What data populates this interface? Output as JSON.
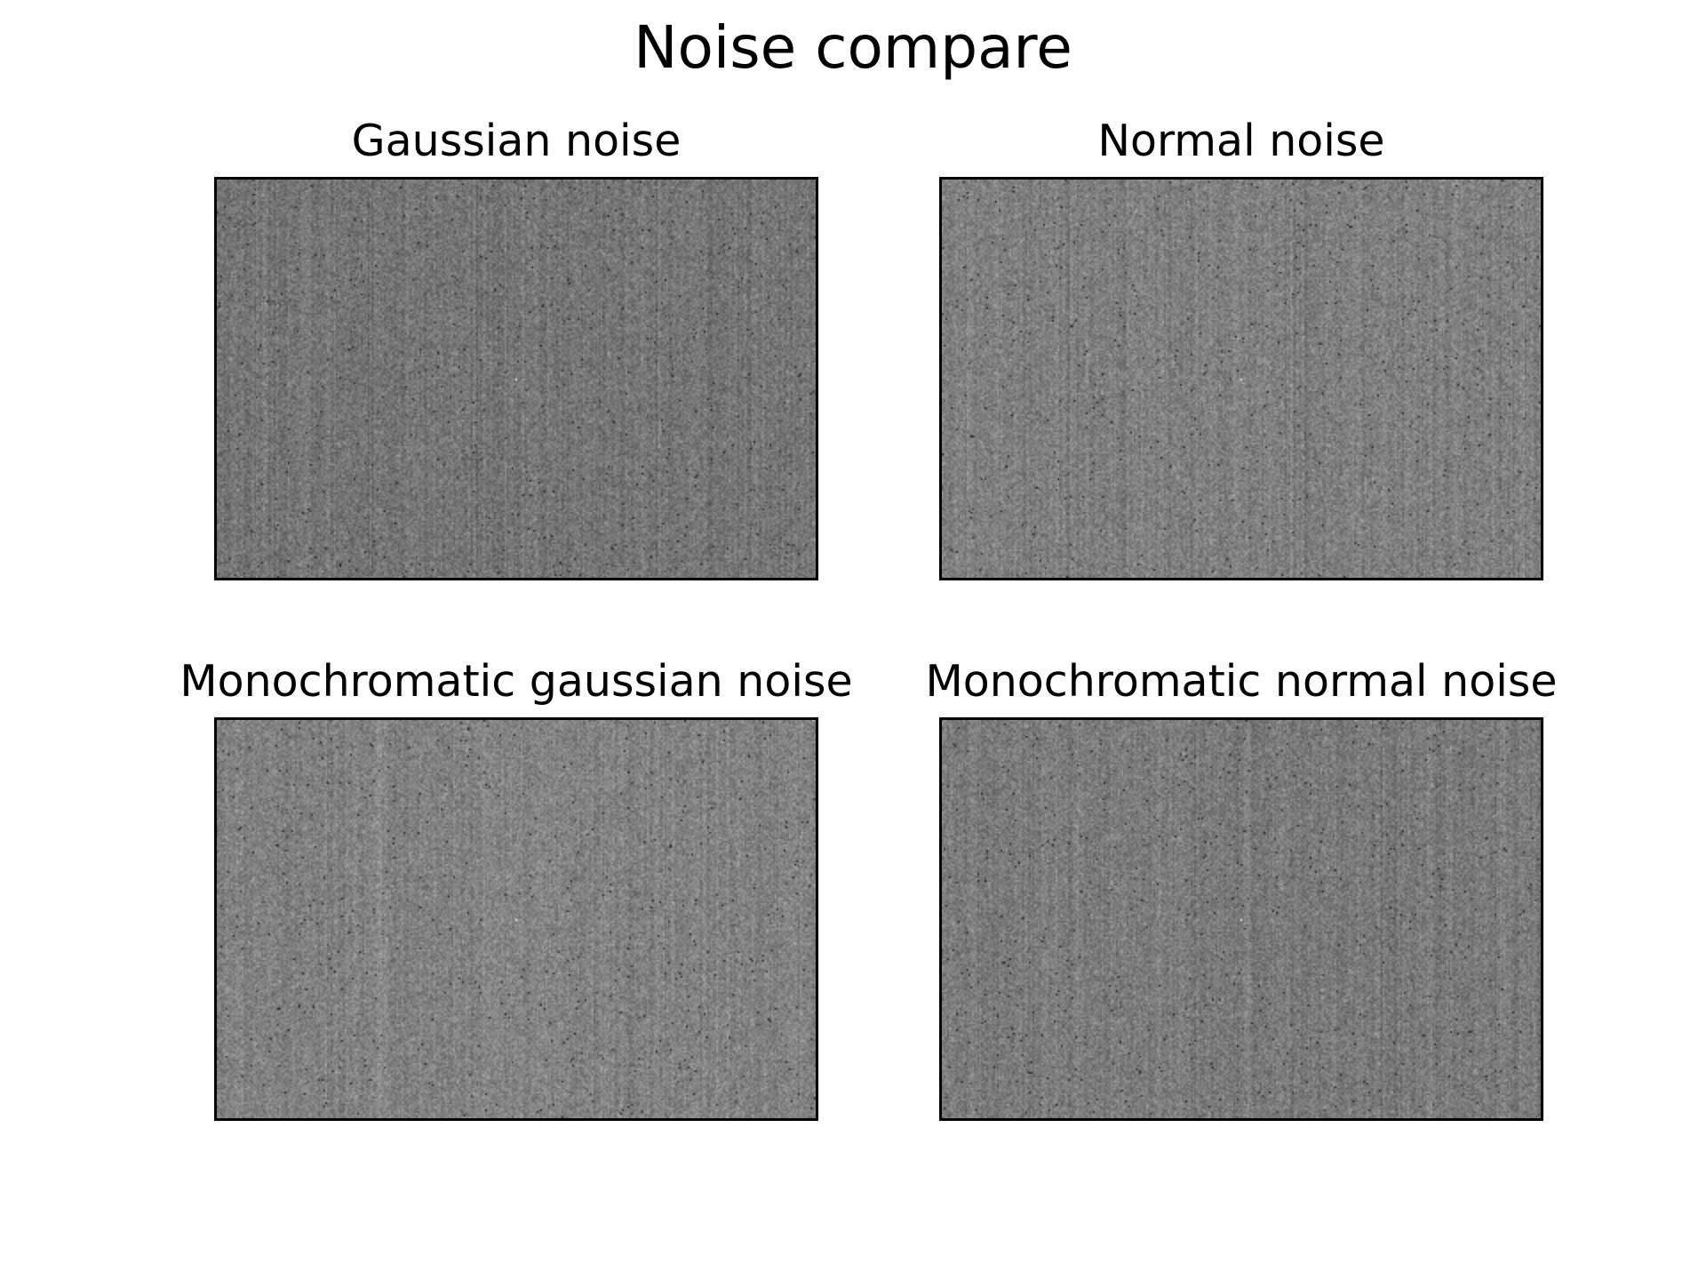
{
  "figure": {
    "title": "Noise compare"
  },
  "chart_data": [
    {
      "type": "heatmap",
      "title": "Gaussian noise",
      "colormap": "gray",
      "mean_level": 0.46,
      "axes_visible": false
    },
    {
      "type": "heatmap",
      "title": "Normal noise",
      "colormap": "gray",
      "mean_level": 0.5,
      "axes_visible": false
    },
    {
      "type": "heatmap",
      "title": "Monochromatic gaussian noise",
      "colormap": "gray",
      "mean_level": 0.51,
      "axes_visible": false
    },
    {
      "type": "heatmap",
      "title": "Monochromatic normal noise",
      "colormap": "gray",
      "mean_level": 0.48,
      "axes_visible": false
    }
  ],
  "colors": {
    "background": "#ffffff",
    "frame": "#000000",
    "text": "#000000"
  }
}
